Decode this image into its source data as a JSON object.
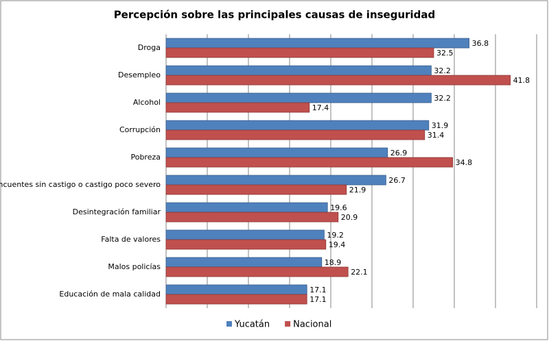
{
  "chart_data": {
    "type": "bar",
    "orientation": "horizontal",
    "title": "Percepción sobre las principales causas de inseguridad",
    "categories": [
      "Droga",
      "Desempleo",
      "Alcohol",
      "Corrupción",
      "Pobreza",
      "Delincuentes sin castigo o castigo poco severo",
      "Desintegración familiar",
      "Falta de valores",
      "Malos policías",
      "Educación de mala calidad"
    ],
    "series": [
      {
        "name": "Yucatán",
        "color": "#4f81bd",
        "values": [
          36.8,
          32.2,
          32.2,
          31.9,
          26.9,
          26.7,
          19.6,
          19.2,
          18.9,
          17.1
        ]
      },
      {
        "name": "Nacional",
        "color": "#c0504d",
        "values": [
          32.5,
          41.8,
          17.4,
          31.4,
          34.8,
          21.9,
          20.9,
          19.4,
          22.1,
          17.1
        ]
      }
    ],
    "xlim": [
      0,
      45
    ],
    "xticks": [
      0,
      5,
      10,
      15,
      20,
      25,
      30,
      35,
      40,
      45
    ],
    "grid": true,
    "legend": "bottom"
  }
}
